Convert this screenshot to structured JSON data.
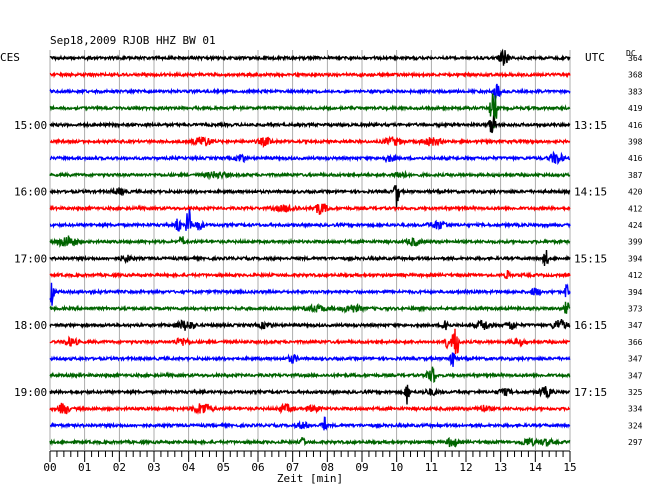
{
  "header": {
    "title": "Sep18,2009   RJOB HHZ BW 01",
    "left_zone": "CES",
    "right_zone": "UTC",
    "dc_label": "DC"
  },
  "chart_data": {
    "type": "line",
    "title": "Sep18,2009   RJOB HHZ BW 01",
    "xlabel": "Zeit [min]",
    "ylabel": "",
    "xlim": [
      0,
      15
    ],
    "x_ticks": [
      "00",
      "01",
      "02",
      "03",
      "04",
      "05",
      "06",
      "07",
      "08",
      "09",
      "10",
      "11",
      "12",
      "13",
      "14",
      "15"
    ],
    "grid": true,
    "row_colors": [
      "#000000",
      "#ff0000",
      "#0000ff",
      "#006400"
    ],
    "rows": 24,
    "left_time_labels": [
      {
        "row": 4,
        "text": "15:00"
      },
      {
        "row": 8,
        "text": "16:00"
      },
      {
        "row": 12,
        "text": "17:00"
      },
      {
        "row": 16,
        "text": "18:00"
      },
      {
        "row": 20,
        "text": "19:00"
      }
    ],
    "right_time_labels": [
      {
        "row": 4,
        "text": "13:15"
      },
      {
        "row": 8,
        "text": "14:15"
      },
      {
        "row": 12,
        "text": "15:15"
      },
      {
        "row": 16,
        "text": "16:15"
      },
      {
        "row": 20,
        "text": "17:15"
      }
    ],
    "dc_values": [
      364,
      368,
      383,
      419,
      416,
      398,
      416,
      387,
      420,
      412,
      424,
      399,
      394,
      412,
      394,
      373,
      347,
      366,
      347,
      347,
      325,
      334,
      324,
      297
    ],
    "bursts": [
      [
        [
          13.1,
          0.2,
          8
        ]
      ],
      [],
      [
        [
          12.9,
          0.15,
          12
        ]
      ],
      [
        [
          12.8,
          0.15,
          20
        ]
      ],
      [
        [
          12.75,
          0.15,
          10
        ]
      ],
      [
        [
          4.4,
          0.4,
          5
        ],
        [
          6.2,
          0.3,
          4
        ],
        [
          9.9,
          0.4,
          4
        ],
        [
          11.0,
          0.4,
          4
        ]
      ],
      [
        [
          5.5,
          0.2,
          5
        ],
        [
          9.8,
          0.3,
          3
        ],
        [
          14.6,
          0.3,
          6
        ]
      ],
      [
        [
          4.8,
          0.5,
          3
        ],
        [
          10.1,
          0.3,
          3
        ]
      ],
      [
        [
          10.0,
          0.1,
          16
        ],
        [
          2.0,
          0.3,
          3
        ]
      ],
      [
        [
          7.8,
          0.3,
          6
        ],
        [
          6.8,
          0.5,
          3
        ]
      ],
      [
        [
          4.0,
          0.1,
          22
        ],
        [
          3.7,
          0.1,
          10
        ],
        [
          11.2,
          0.4,
          4
        ],
        [
          4.3,
          0.2,
          5
        ]
      ],
      [
        [
          0.5,
          0.4,
          6
        ],
        [
          3.8,
          0.1,
          8
        ],
        [
          10.5,
          0.3,
          4
        ]
      ],
      [
        [
          14.3,
          0.1,
          10
        ],
        [
          2.2,
          0.3,
          3
        ]
      ],
      [
        [
          13.2,
          0.1,
          5
        ]
      ],
      [
        [
          0.05,
          0.1,
          14
        ],
        [
          14.0,
          0.2,
          4
        ],
        [
          14.9,
          0.1,
          8
        ]
      ],
      [
        [
          8.7,
          0.4,
          4
        ],
        [
          14.9,
          0.1,
          8
        ],
        [
          7.7,
          0.5,
          3
        ]
      ],
      [
        [
          3.9,
          0.4,
          5
        ],
        [
          12.5,
          0.3,
          5
        ],
        [
          14.7,
          0.3,
          6
        ],
        [
          11.4,
          0.1,
          12
        ],
        [
          13.3,
          0.2,
          5
        ],
        [
          6.2,
          0.3,
          3
        ]
      ],
      [
        [
          11.7,
          0.15,
          18
        ],
        [
          11.4,
          0.1,
          10
        ],
        [
          0.6,
          0.3,
          4
        ],
        [
          3.8,
          0.3,
          4
        ],
        [
          13.5,
          0.3,
          3
        ]
      ],
      [
        [
          11.6,
          0.1,
          14
        ],
        [
          7.0,
          0.2,
          4
        ]
      ],
      [
        [
          11.05,
          0.1,
          12
        ],
        [
          10.9,
          0.1,
          6
        ]
      ],
      [
        [
          10.3,
          0.1,
          12
        ],
        [
          14.3,
          0.3,
          5
        ],
        [
          11.0,
          0.3,
          3
        ],
        [
          13.1,
          0.3,
          3
        ]
      ],
      [
        [
          0.4,
          0.2,
          7
        ],
        [
          4.4,
          0.4,
          6
        ],
        [
          6.8,
          0.3,
          4
        ],
        [
          7.6,
          0.3,
          3
        ],
        [
          12.5,
          0.3,
          3
        ]
      ],
      [
        [
          7.9,
          0.1,
          10
        ],
        [
          7.3,
          0.3,
          3
        ]
      ],
      [
        [
          11.6,
          0.2,
          6
        ],
        [
          7.3,
          0.1,
          6
        ],
        [
          13.8,
          0.3,
          4
        ],
        [
          14.3,
          0.3,
          3
        ]
      ]
    ]
  }
}
